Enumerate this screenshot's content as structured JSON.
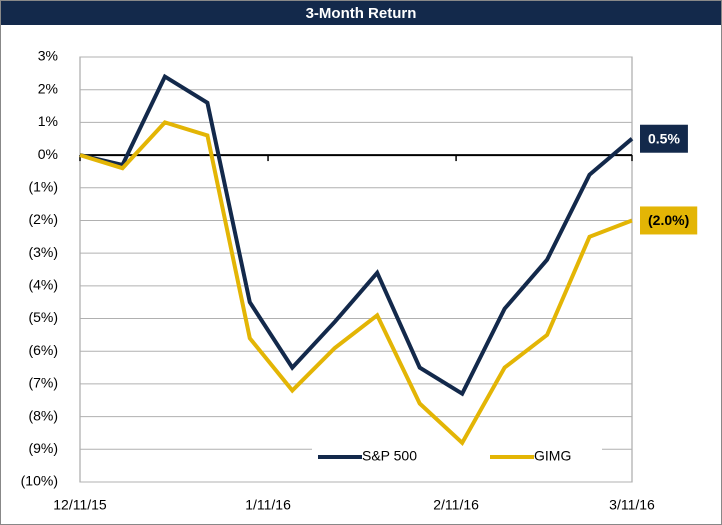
{
  "chart_data": {
    "type": "line",
    "title": "3-Month Return",
    "x": [
      "12/11/15",
      "12/18/15",
      "12/25/15",
      "1/1/16",
      "1/8/16",
      "1/15/16",
      "1/22/16",
      "1/29/16",
      "2/5/16",
      "2/12/16",
      "2/19/16",
      "2/26/16",
      "3/4/16",
      "3/11/16"
    ],
    "series": [
      {
        "name": "S&P 500",
        "color": "#13294b",
        "values": [
          0,
          -0.3,
          2.4,
          1.6,
          -4.5,
          -6.5,
          -5.1,
          -3.6,
          -6.5,
          -7.3,
          -4.7,
          -3.2,
          -0.6,
          0.5
        ],
        "end_label": "0.5%"
      },
      {
        "name": "GIMG",
        "color": "#e3b505",
        "values": [
          0,
          -0.4,
          1.0,
          0.6,
          -5.6,
          -7.2,
          -5.9,
          -4.9,
          -7.6,
          -8.8,
          -6.5,
          -5.5,
          -2.5,
          -2.0
        ],
        "end_label": "(2.0%)"
      }
    ],
    "ylim": [
      -10,
      3
    ],
    "yticks": [
      {
        "value": 3,
        "label": "3%"
      },
      {
        "value": 2,
        "label": "2%"
      },
      {
        "value": 1,
        "label": "1%"
      },
      {
        "value": 0,
        "label": "0%"
      },
      {
        "value": -1,
        "label": "(1%)"
      },
      {
        "value": -2,
        "label": "(2%)"
      },
      {
        "value": -3,
        "label": "(3%)"
      },
      {
        "value": -4,
        "label": "(4%)"
      },
      {
        "value": -5,
        "label": "(5%)"
      },
      {
        "value": -6,
        "label": "(6%)"
      },
      {
        "value": -7,
        "label": "(7%)"
      },
      {
        "value": -8,
        "label": "(8%)"
      },
      {
        "value": -9,
        "label": "(9%)"
      },
      {
        "value": -10,
        "label": "(10%)"
      }
    ],
    "xticks": [
      "12/11/15",
      "1/11/16",
      "2/11/16",
      "3/11/16"
    ],
    "grid": true,
    "legend": "bottom"
  }
}
